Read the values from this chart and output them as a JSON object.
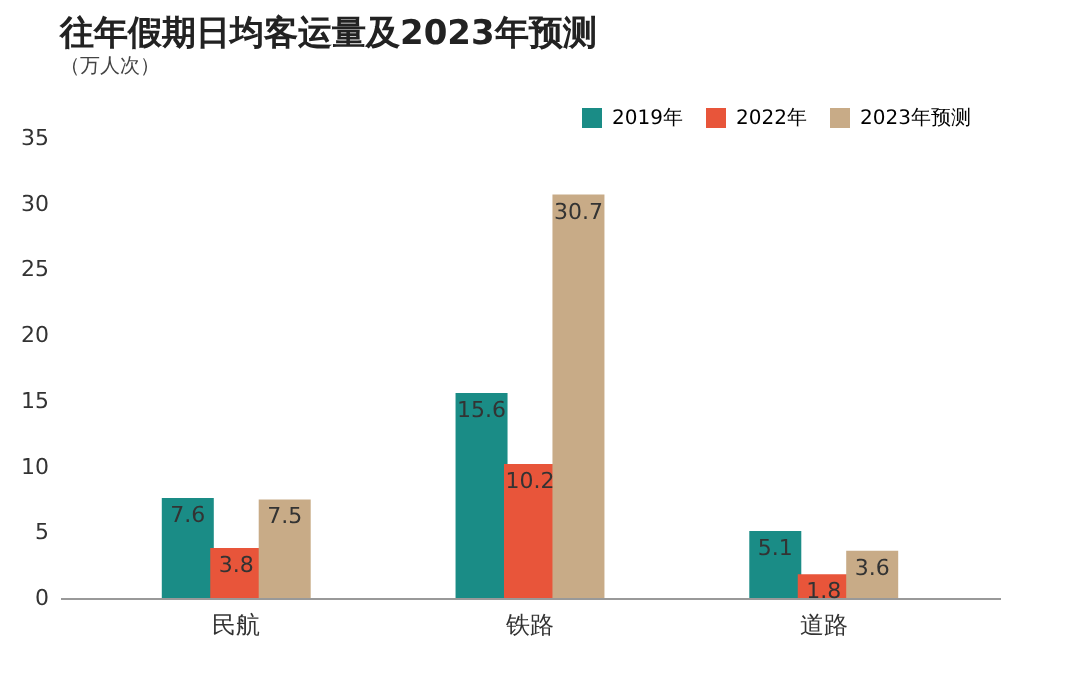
{
  "chart_data": {
    "type": "bar",
    "title": "往年假期日均客运量及2023年预测",
    "subtitle": "（万人次）",
    "categories": [
      "民航",
      "铁路",
      "道路"
    ],
    "series": [
      {
        "name": "2019年",
        "color": "#1a8c86",
        "values": [
          7.6,
          15.6,
          5.1
        ]
      },
      {
        "name": "2022年",
        "color": "#e8553a",
        "values": [
          3.8,
          10.2,
          1.8
        ]
      },
      {
        "name": "2023年预测",
        "color": "#c8ab87",
        "values": [
          7.5,
          30.7,
          3.6
        ]
      }
    ],
    "ylim": [
      0,
      35
    ],
    "yticks": [
      0,
      5,
      10,
      15,
      20,
      25,
      30,
      35
    ],
    "data_labels": true,
    "legend": "top right"
  }
}
